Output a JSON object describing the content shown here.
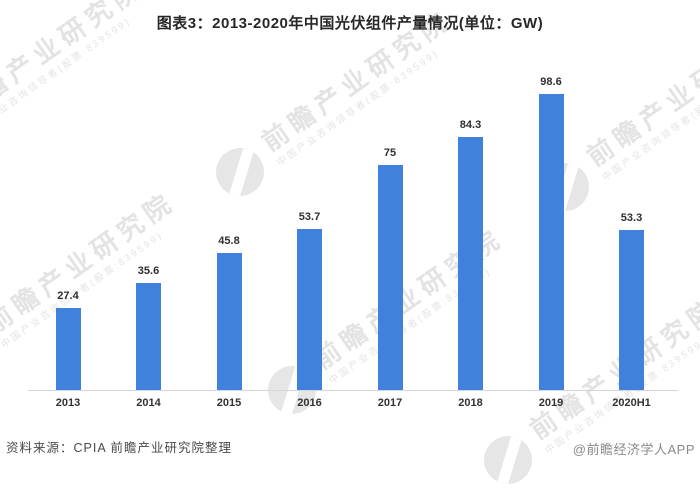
{
  "header": {
    "title": "图表3：2013-2020年中国光伏组件产量情况(单位：GW)"
  },
  "chart_data": {
    "type": "bar",
    "title": "图表3：2013-2020年中国光伏组件产量情况(单位：GW)",
    "unit": "GW",
    "categories": [
      "2013",
      "2014",
      "2015",
      "2016",
      "2017",
      "2018",
      "2019",
      "2020H1"
    ],
    "values": [
      27.4,
      35.6,
      45.8,
      53.7,
      75,
      84.3,
      98.6,
      53.3
    ],
    "value_labels": [
      "27.4",
      "35.6",
      "45.8",
      "53.7",
      "75",
      "84.3",
      "98.6",
      "53.3"
    ],
    "xlabel": "",
    "ylabel": "",
    "ylim": [
      0,
      105
    ],
    "grid": false,
    "legend": "none",
    "bar_color": "#3F81DD",
    "label_color": "#2f2f2f",
    "axis_line_color": "#d6d6d6"
  },
  "watermark": {
    "main_text": "前瞻产业研究院",
    "sub_text": "中国产业咨询领导者(股票:839599)"
  },
  "footer": {
    "source": "资料来源：CPIA 前瞻产业研究院整理",
    "credit": "@前瞻经济学人APP"
  }
}
